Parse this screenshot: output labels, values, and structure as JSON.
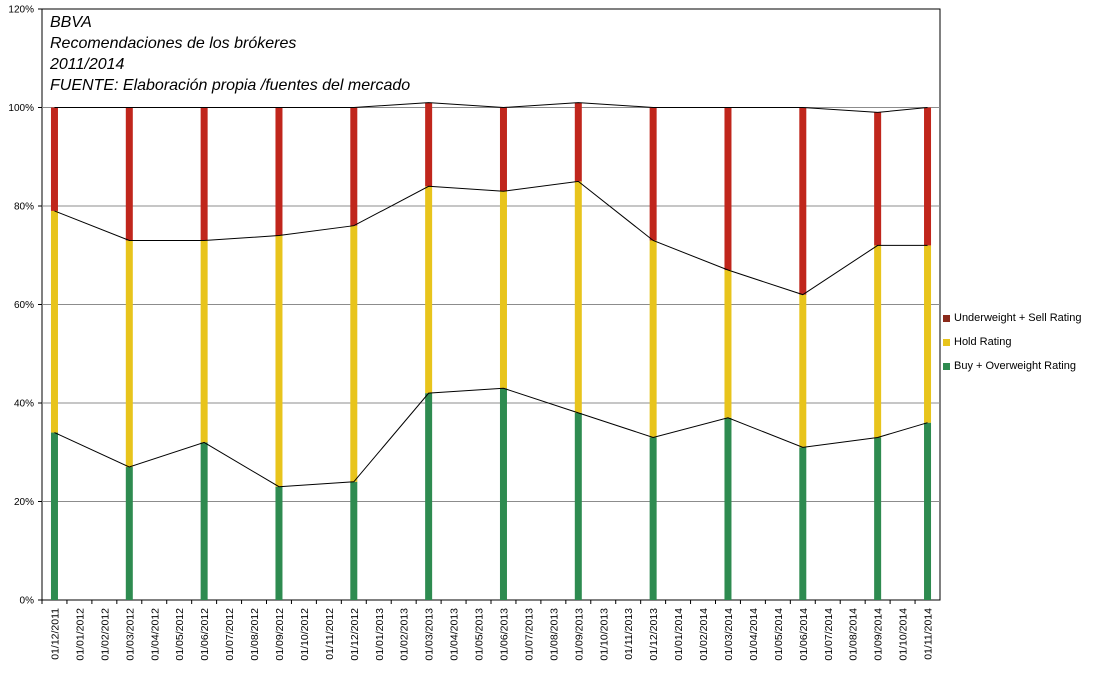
{
  "chart_data": {
    "type": "bar",
    "stacked": true,
    "title_lines": [
      "BBVA",
      "Recomendaciones de los brókeres",
      "2011/2014",
      "FUENTE: Elaboración propia /fuentes del mercado"
    ],
    "categories": [
      "01/12/2011",
      "01/01/2012",
      "01/02/2012",
      "01/03/2012",
      "01/04/2012",
      "01/05/2012",
      "01/06/2012",
      "01/07/2012",
      "01/08/2012",
      "01/09/2012",
      "01/10/2012",
      "01/11/2012",
      "01/12/2012",
      "01/01/2013",
      "01/02/2013",
      "01/03/2013",
      "01/04/2013",
      "01/05/2013",
      "01/06/2013",
      "01/07/2013",
      "01/08/2013",
      "01/09/2013",
      "01/10/2013",
      "01/11/2013",
      "01/12/2013",
      "01/01/2014",
      "01/02/2014",
      "01/03/2014",
      "01/04/2014",
      "01/05/2014",
      "01/06/2014",
      "01/07/2014",
      "01/08/2014",
      "01/09/2014",
      "01/10/2014",
      "01/11/2014"
    ],
    "series": [
      {
        "name": "Buy + Overweight Rating",
        "color": "#2e8b50",
        "values": [
          34,
          null,
          null,
          27,
          null,
          null,
          32,
          null,
          null,
          23,
          null,
          null,
          24,
          null,
          null,
          42,
          null,
          null,
          43,
          null,
          null,
          38,
          null,
          null,
          33,
          null,
          null,
          37,
          null,
          null,
          31,
          null,
          null,
          33,
          null,
          36
        ]
      },
      {
        "name": "Hold Rating",
        "color": "#e8c41c",
        "values": [
          45,
          null,
          null,
          46,
          null,
          null,
          41,
          null,
          null,
          51,
          null,
          null,
          52,
          null,
          null,
          42,
          null,
          null,
          40,
          null,
          null,
          47,
          null,
          null,
          40,
          null,
          null,
          30,
          null,
          null,
          31,
          null,
          null,
          39,
          null,
          36
        ]
      },
      {
        "name": "Underweight + Sell Rating",
        "color": "#c0261c",
        "values": [
          21,
          null,
          null,
          27,
          null,
          null,
          27,
          null,
          null,
          26,
          null,
          null,
          24,
          null,
          null,
          17,
          null,
          null,
          17,
          null,
          null,
          16,
          null,
          null,
          27,
          null,
          null,
          33,
          null,
          null,
          38,
          null,
          null,
          27,
          null,
          28
        ]
      }
    ],
    "yticks": [
      "0%",
      "20%",
      "40%",
      "60%",
      "80%",
      "100%",
      "120%"
    ],
    "ylim": [
      0,
      120
    ],
    "grid": true,
    "legend_position": "right",
    "legend_entries": [
      "Underweight + Sell Rating",
      "Hold Rating",
      "Buy + Overweight Rating"
    ],
    "legend_colors": [
      "#8b2a1a",
      "#e8c41c",
      "#2e8b50"
    ]
  }
}
